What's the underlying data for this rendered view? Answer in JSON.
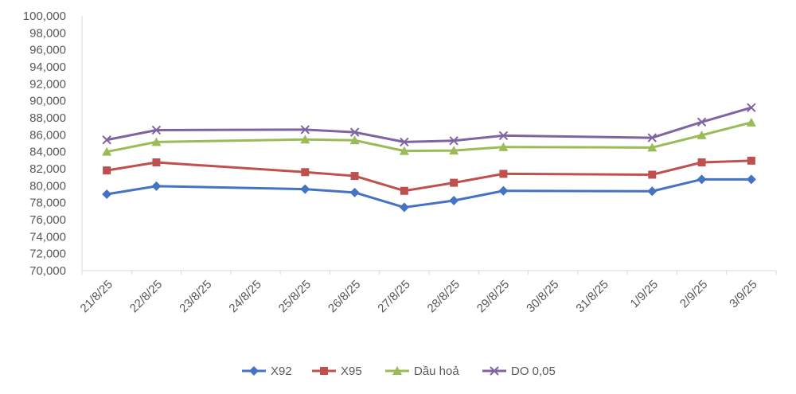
{
  "chart_data": {
    "type": "line",
    "title": "",
    "xlabel": "",
    "ylabel": "",
    "categories": [
      "21/8/25",
      "22/8/25",
      "23/8/25",
      "24/8/25",
      "25/8/25",
      "26/8/25",
      "27/8/25",
      "28/8/25",
      "29/8/25",
      "30/8/25",
      "31/8/25",
      "1/9/25",
      "2/9/25",
      "3/9/25"
    ],
    "ylim": [
      70000,
      100000
    ],
    "ytick_step": 2000,
    "y_tick_labels": [
      "70,000",
      "72,000",
      "74,000",
      "76,000",
      "78,000",
      "80,000",
      "82,000",
      "84,000",
      "86,000",
      "88,000",
      "90,000",
      "92,000",
      "94,000",
      "96,000",
      "98,000",
      "100,000"
    ],
    "grid": false,
    "legend_position": "bottom",
    "series": [
      {
        "name": "X92",
        "color": "#4472C4",
        "marker": "diamond",
        "values": [
          79000,
          79950,
          null,
          null,
          79600,
          79200,
          77450,
          78250,
          79400,
          null,
          null,
          79350,
          80750,
          80750
        ]
      },
      {
        "name": "X95",
        "color": "#C0504D",
        "marker": "square",
        "values": [
          81800,
          82750,
          null,
          null,
          81600,
          81150,
          79400,
          80350,
          81400,
          null,
          null,
          81300,
          82750,
          82950
        ]
      },
      {
        "name": "Dầu hoả",
        "color": "#9BBB59",
        "marker": "triangle",
        "values": [
          84000,
          85150,
          null,
          null,
          85450,
          85350,
          84100,
          84150,
          84550,
          null,
          null,
          84500,
          85950,
          87450
        ]
      },
      {
        "name": "DO 0,05",
        "color": "#8064A2",
        "marker": "x",
        "values": [
          85400,
          86550,
          null,
          null,
          86600,
          86300,
          85150,
          85300,
          85900,
          null,
          null,
          85650,
          87500,
          89200
        ]
      }
    ]
  }
}
